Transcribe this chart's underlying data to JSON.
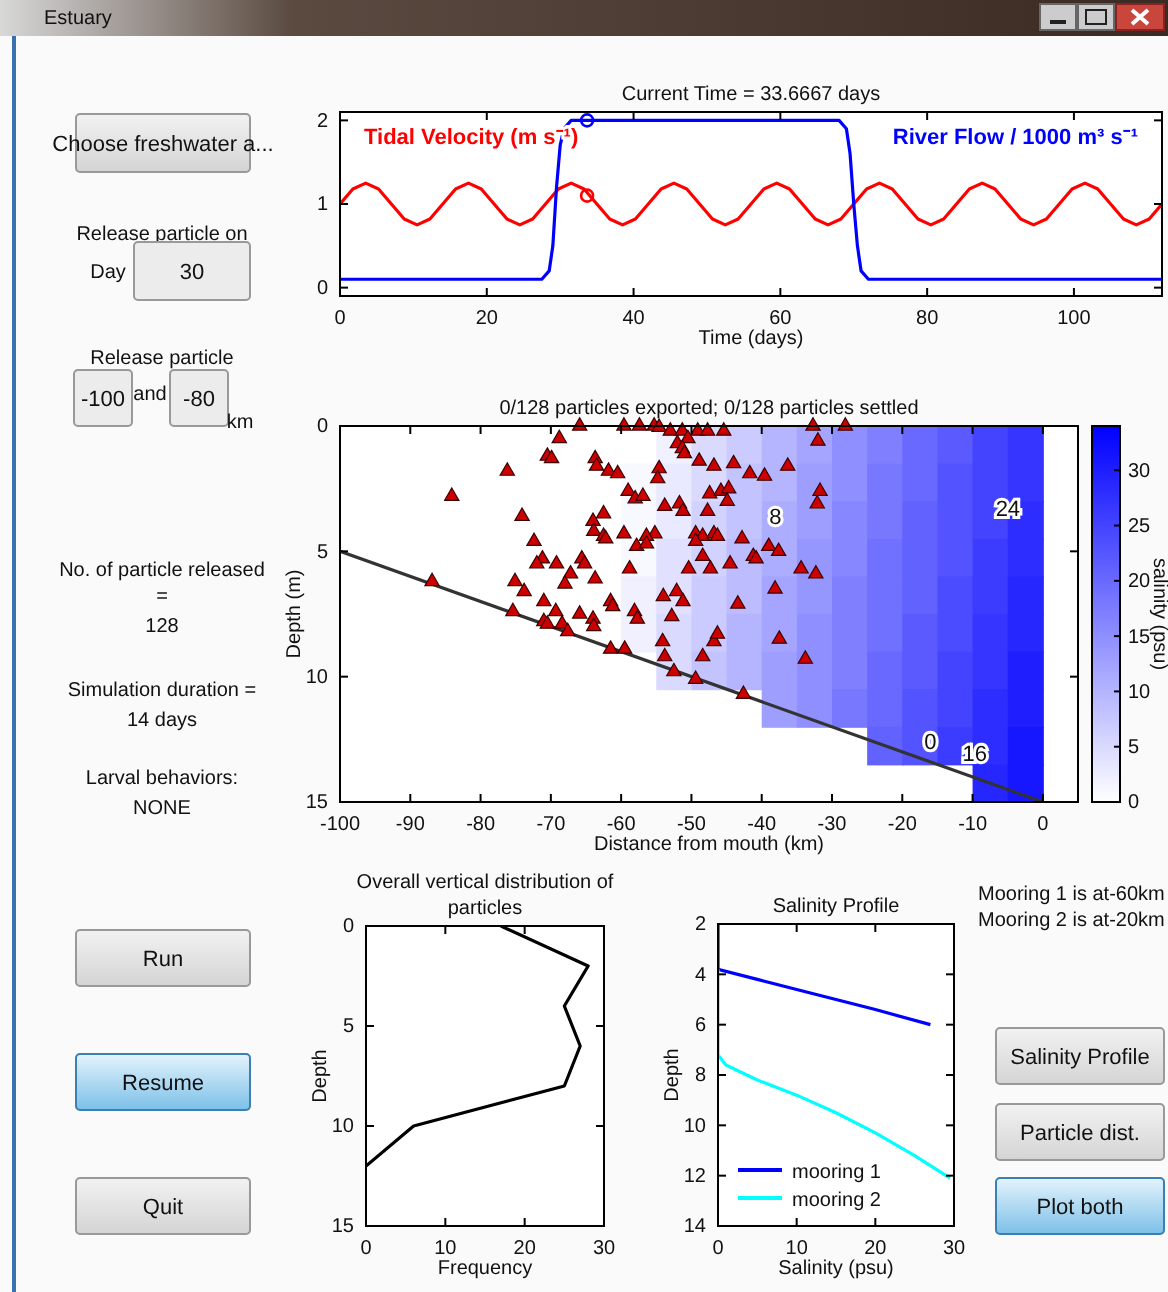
{
  "chart_data": [
    {
      "type": "line",
      "title": "Current Time = 33.6667 days",
      "xlabel": "Time (days)",
      "xlim": [
        0,
        112
      ],
      "xticks": [
        0,
        20,
        40,
        60,
        80,
        100
      ],
      "ylim": [
        -0.1,
        2.1
      ],
      "yticks": [
        0,
        1,
        2
      ],
      "legend": false,
      "series": [
        {
          "name": "Tidal Velocity (m s⁻¹)",
          "color": "#ff0000",
          "x": [
            0,
            1.75,
            3.5,
            5.25,
            7,
            8.75,
            10.5,
            12.25,
            14,
            15.75,
            17.5,
            19.25,
            21,
            22.75,
            24.5,
            26.25,
            28,
            29.75,
            31.5,
            33.25,
            35,
            36.75,
            38.5,
            40.25,
            42,
            43.75,
            45.5,
            47.25,
            49,
            50.75,
            52.5,
            54.25,
            56,
            57.75,
            59.5,
            61.25,
            63,
            64.75,
            66.5,
            68.25,
            70,
            71.75,
            73.5,
            75.25,
            77,
            78.75,
            80.5,
            82.25,
            84,
            85.75,
            87.5,
            89.25,
            91,
            92.75,
            94.5,
            96.25,
            98,
            99.75,
            101.5,
            103.25,
            105,
            106.75,
            108.5,
            110.25,
            112
          ],
          "values": [
            1,
            1.18,
            1.25,
            1.18,
            1,
            0.82,
            0.75,
            0.82,
            1,
            1.18,
            1.25,
            1.18,
            1,
            0.82,
            0.75,
            0.82,
            1,
            1.18,
            1.25,
            1.18,
            1,
            0.82,
            0.75,
            0.82,
            1,
            1.18,
            1.25,
            1.18,
            1,
            0.82,
            0.75,
            0.82,
            1,
            1.18,
            1.25,
            1.18,
            1,
            0.82,
            0.75,
            0.82,
            1,
            1.18,
            1.25,
            1.18,
            1,
            0.82,
            0.75,
            0.82,
            1,
            1.18,
            1.25,
            1.18,
            1,
            0.82,
            0.75,
            0.82,
            1,
            1.18,
            1.25,
            1.18,
            1,
            0.82,
            0.75,
            0.82,
            1
          ]
        },
        {
          "name": "River Flow / 1000 m³ s⁻¹",
          "color": "#0000ff",
          "x": [
            0,
            27.5,
            28.5,
            29,
            29.5,
            30,
            30.5,
            31.5,
            68,
            69,
            69.5,
            70,
            70.5,
            71,
            72,
            112
          ],
          "values": [
            0.1,
            0.1,
            0.2,
            0.5,
            1.2,
            1.7,
            1.9,
            2,
            2,
            1.9,
            1.6,
            1,
            0.5,
            0.2,
            0.1,
            0.1
          ]
        },
        {
          "type": "scatter",
          "marker": "circle",
          "color": "#0000ff",
          "x": [
            33.6667
          ],
          "values": [
            2
          ]
        },
        {
          "type": "scatter",
          "marker": "circle",
          "color": "#ff0000",
          "x": [
            33.6667
          ],
          "values": [
            1.1
          ]
        }
      ]
    },
    {
      "type": "heatmap",
      "title": "0/128 particles exported;  0/128 particles settled",
      "xlabel": "Distance from mouth (km)",
      "ylabel": "Depth (m)",
      "clabel": "salinity (psu)",
      "xlim": [
        -100,
        5
      ],
      "xticks": [
        -100,
        -90,
        -80,
        -70,
        -60,
        -50,
        -40,
        -30,
        -20,
        -10,
        0
      ],
      "ylim": [
        15,
        0
      ],
      "yticks": [
        0,
        5,
        10,
        15
      ],
      "clim": [
        0,
        34
      ],
      "cticks": [
        0,
        5,
        10,
        15,
        20,
        25,
        30
      ],
      "x": [
        -57.5,
        -52.5,
        -47.5,
        -42.5,
        -37.5,
        -32.5,
        -27.5,
        -22.5,
        -17.5,
        -12.5,
        -7.5,
        -2.5
      ],
      "cells": [
        [
          0,
          2,
          5,
          7,
          10,
          12,
          15,
          17,
          20,
          22,
          25,
          27
        ],
        [
          1,
          3,
          5,
          8,
          10,
          13,
          15,
          18,
          20,
          23,
          25,
          27
        ],
        [
          1,
          3,
          6,
          8,
          11,
          13,
          16,
          18,
          21,
          23,
          25,
          28
        ],
        [
          1,
          4,
          6,
          9,
          11,
          14,
          16,
          19,
          21,
          23,
          26,
          28
        ],
        [
          2,
          4,
          7,
          9,
          12,
          14,
          17,
          19,
          21,
          24,
          26,
          29
        ],
        [
          2,
          5,
          7,
          10,
          12,
          15,
          17,
          19,
          22,
          24,
          27,
          29
        ],
        [
          null,
          5,
          8,
          10,
          13,
          15,
          17,
          20,
          22,
          25,
          27,
          30
        ],
        [
          null,
          null,
          null,
          null,
          13,
          15,
          18,
          20,
          23,
          25,
          28,
          30
        ],
        [
          null,
          null,
          null,
          null,
          null,
          null,
          null,
          21,
          23,
          26,
          28,
          31
        ],
        [
          null,
          null,
          null,
          null,
          null,
          null,
          null,
          null,
          null,
          null,
          29,
          31
        ]
      ],
      "series": [
        {
          "type": "line",
          "color": "#333333",
          "x": [
            -100,
            0
          ],
          "values": [
            5,
            15
          ]
        },
        {
          "type": "scatter",
          "marker": "triangle",
          "color": "#cc0000",
          "x": [
            -65.9,
            -59.6,
            -57.4,
            -55.3,
            -54.6,
            -53,
            -51.3,
            -49.1,
            -47.7,
            -45.4,
            -50.5,
            -52,
            -51.3,
            -51,
            -48.9,
            -46.8,
            -44,
            -32.7,
            -28.1,
            -32,
            -36.3,
            -41.7,
            -39.6,
            -68.8,
            -70.5,
            -69.9,
            -76.2,
            -84.1,
            -63.7,
            -63.5,
            -61.8,
            -60.5,
            -59,
            -58,
            -56.9,
            -54.6,
            -54.8,
            -53.8,
            -51.7,
            -51.2,
            -47.4,
            -45.8,
            -44.7,
            -44.9,
            -47.7,
            -62.5,
            -64,
            -63.9,
            -62.5,
            -62.2,
            -59.6,
            -55.2,
            -56.4,
            -57.8,
            -56.4,
            -74.1,
            -72.4,
            -71.2,
            -72,
            -69.2,
            -65.6,
            -65.2,
            -63.7,
            -67.2,
            -68,
            -75.1,
            -73.8,
            -86.9,
            -75.4,
            -71,
            -71,
            -70.5,
            -69.3,
            -68.4,
            -67.6,
            -65.9,
            -64,
            -63.9,
            -61.5,
            -61.2,
            -61.5,
            -59.5,
            -58.1,
            -57.7,
            -58.8,
            -54,
            -52.1,
            -51.2,
            -52.8,
            -54.1,
            -53.8,
            -52.5,
            -49.4,
            -48.4,
            -46.8,
            -46.3,
            -49.4,
            -48.4,
            -46.8,
            -46.3,
            -49.4,
            -48.4,
            -50.4,
            -47.3,
            -44.5,
            -42.8,
            -41.2,
            -40.8,
            -39,
            -37.6,
            -38.1,
            -43.4,
            -37.5,
            -34.4,
            -32.3,
            -32.1,
            -31.7,
            -33.8,
            -42.6
          ],
          "values": [
            0,
            0,
            0,
            0,
            0.05,
            0.2,
            0.2,
            0.2,
            0.2,
            0.2,
            0.5,
            0.7,
            0.9,
            1.1,
            1.4,
            1.6,
            1.5,
            0,
            0,
            0.6,
            1.6,
            1.9,
            2,
            0.5,
            1.2,
            1.3,
            1.8,
            2.8,
            1.3,
            1.6,
            1.8,
            1.9,
            2.6,
            2.9,
            2.8,
            1.7,
            2.1,
            3.2,
            3.1,
            3.4,
            2.7,
            2.6,
            2.5,
            3,
            3.4,
            3.5,
            3.8,
            4.2,
            4.4,
            4.5,
            4.3,
            4.3,
            4.4,
            4.8,
            4.7,
            3.6,
            4.6,
            5.3,
            5.5,
            5.5,
            5.3,
            5.5,
            6.1,
            5.9,
            6.3,
            6.2,
            6.6,
            6.2,
            7.4,
            7,
            7.8,
            7.9,
            7.4,
            7.9,
            8.2,
            7.5,
            7.7,
            8,
            7,
            7.2,
            8.9,
            8.9,
            7.4,
            7.7,
            5.7,
            6.8,
            6.6,
            7,
            7.6,
            8.6,
            9.2,
            9.8,
            10.1,
            9.2,
            8.6,
            8.3,
            4.3,
            4.4,
            4.3,
            4.4,
            4.6,
            5.2,
            5.7,
            5.7,
            5.5,
            4.5,
            5.2,
            5.3,
            4.8,
            5,
            6.5,
            7.1,
            8.5,
            5.7,
            5.9,
            3.1,
            2.6,
            9.3,
            10.7
          ]
        }
      ],
      "annotations": [
        "8",
        "24",
        "0",
        "16"
      ]
    },
    {
      "type": "line",
      "title": "Overall vertical distribution of particles",
      "xlabel": "Frequency",
      "ylabel": "Depth",
      "xlim": [
        0,
        30
      ],
      "xticks": [
        0,
        10,
        20,
        30
      ],
      "ylim": [
        15,
        0
      ],
      "yticks": [
        0,
        5,
        10,
        15
      ],
      "series": [
        {
          "color": "#000000",
          "x": [
            17,
            28,
            25,
            27,
            25,
            6,
            0
          ],
          "values": [
            0,
            2,
            4,
            6,
            8,
            10,
            12
          ]
        }
      ]
    },
    {
      "type": "line",
      "title": "Salinity Profile",
      "xlabel": "Salinity (psu)",
      "ylabel": "Depth",
      "xlim": [
        0,
        30
      ],
      "xticks": [
        0,
        10,
        20,
        30
      ],
      "ylim": [
        14,
        2
      ],
      "yticks": [
        2,
        4,
        6,
        8,
        10,
        12,
        14
      ],
      "legend": "bottom left",
      "series": [
        {
          "name": "mooring 1",
          "color": "#0000ff",
          "x": [
            0,
            0,
            5,
            10,
            15,
            20,
            27
          ],
          "values": [
            2,
            3.8,
            4.2,
            4.6,
            5,
            5.4,
            6
          ]
        },
        {
          "name": "mooring 2",
          "color": "#00ffff",
          "x": [
            0,
            0,
            1,
            5,
            10,
            15,
            20,
            25,
            28,
            29.5
          ],
          "values": [
            3.8,
            7.2,
            7.6,
            8.2,
            8.8,
            9.5,
            10.3,
            11.2,
            11.8,
            12.1
          ]
        }
      ],
      "annotations": [
        "Mooring 1 is at-60km",
        "Mooring 2 is at-20km"
      ]
    },
    {
      "type": "other",
      "annotations": [
        "Estuary",
        "Choose freshwater a...",
        "Release particle on",
        "Day",
        "30",
        "Release particle",
        "-100",
        "and",
        "-80",
        "km",
        "No. of particle released",
        "=",
        "128",
        "Simulation duration =",
        "14 days",
        "Larval behaviors:",
        "NONE",
        "Run",
        "Resume",
        "Quit",
        "Salinity Profile",
        "Particle dist.",
        "Plot both"
      ]
    }
  ]
}
